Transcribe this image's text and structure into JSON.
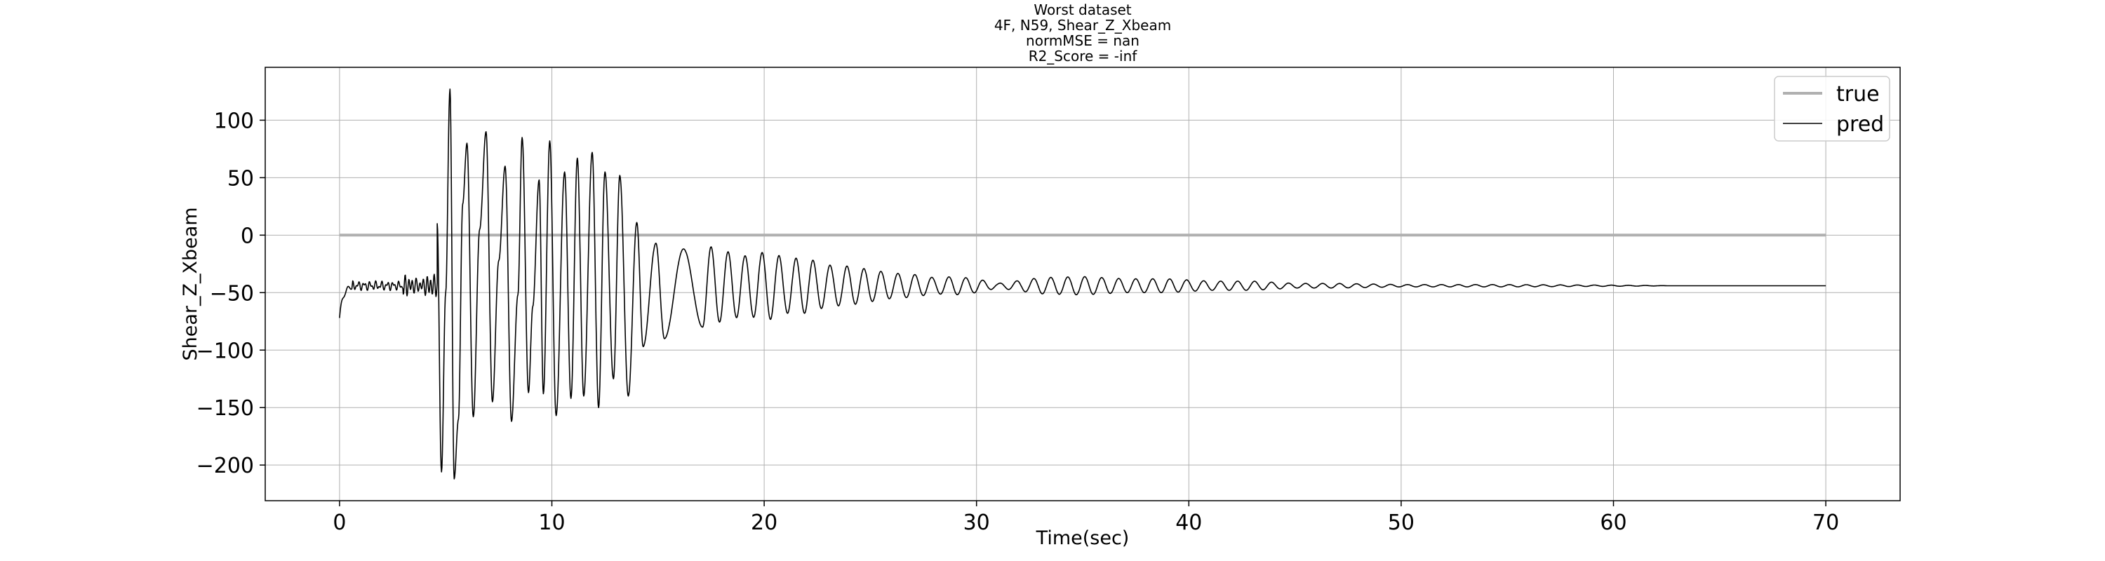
{
  "chart_data": {
    "type": "line",
    "title_lines": [
      "Worst dataset",
      "4F, N59, Shear_Z_Xbeam",
      "normMSE = nan",
      "R2_Score = -inf"
    ],
    "xlabel": "Time(sec)",
    "ylabel": "Shear_Z_Xbeam",
    "xlim": [
      -3.5,
      73.5
    ],
    "ylim": [
      -231,
      146
    ],
    "x_ticks": [
      0,
      10,
      20,
      30,
      40,
      50,
      60,
      70
    ],
    "y_ticks": [
      100,
      50,
      0,
      -50,
      -100,
      -150,
      -200
    ],
    "x_tick_labels": [
      "0",
      "10",
      "20",
      "30",
      "40",
      "50",
      "60",
      "70"
    ],
    "y_tick_labels": [
      "100",
      "50",
      "0",
      "−50",
      "−100",
      "−150",
      "−200"
    ],
    "grid": true,
    "legend_position": "top-right",
    "series": [
      {
        "name": "true",
        "color": "#b0b0b0",
        "style": "thick",
        "x": [
          0,
          70
        ],
        "y": [
          0,
          0
        ]
      },
      {
        "name": "pred",
        "color": "#000000",
        "style": "thin",
        "baseline": -44,
        "start_value": -72,
        "x_range": [
          0,
          70
        ],
        "sample_step": 0.02,
        "oscillation_period_sec": 0.8,
        "extrema": [
          [
            4.6,
            10
          ],
          [
            4.8,
            -206
          ],
          [
            5.0,
            -50
          ],
          [
            5.2,
            127
          ],
          [
            5.4,
            -212
          ],
          [
            5.6,
            -160
          ],
          [
            5.8,
            27
          ],
          [
            6.0,
            80
          ],
          [
            6.3,
            -158
          ],
          [
            6.6,
            5
          ],
          [
            6.9,
            90
          ],
          [
            7.2,
            -145
          ],
          [
            7.5,
            -22
          ],
          [
            7.8,
            60
          ],
          [
            8.1,
            -162
          ],
          [
            8.4,
            -52
          ],
          [
            8.6,
            85
          ],
          [
            8.9,
            -137
          ],
          [
            9.1,
            -62
          ],
          [
            9.4,
            48
          ],
          [
            9.6,
            -138
          ],
          [
            9.9,
            82
          ],
          [
            10.2,
            -157
          ],
          [
            10.6,
            55
          ],
          [
            10.9,
            -142
          ],
          [
            11.2,
            67
          ],
          [
            11.5,
            -140
          ],
          [
            11.9,
            72
          ],
          [
            12.2,
            -150
          ],
          [
            12.5,
            55
          ],
          [
            12.9,
            -125
          ],
          [
            13.2,
            52
          ],
          [
            13.6,
            -140
          ],
          [
            14.0,
            11
          ],
          [
            14.3,
            -97
          ],
          [
            14.9,
            -7
          ],
          [
            15.3,
            -90
          ],
          [
            16.2,
            -12
          ],
          [
            17.1,
            -80
          ],
          [
            18.2,
            -14
          ],
          [
            19.1,
            -70
          ],
          [
            20.2,
            -14
          ],
          [
            21.0,
            -68
          ],
          [
            22.0,
            -20
          ],
          [
            23.0,
            -62
          ],
          [
            24.0,
            -27
          ],
          [
            25.0,
            -58
          ],
          [
            26.0,
            -33
          ],
          [
            27.0,
            -54
          ],
          [
            28.0,
            -37
          ],
          [
            29.0,
            -52
          ],
          [
            30.0,
            -38
          ],
          [
            31.0,
            -42
          ],
          [
            33.0,
            -37
          ],
          [
            35.0,
            -52
          ],
          [
            37.0,
            -38
          ],
          [
            39.0,
            -50
          ],
          [
            41.0,
            -40
          ],
          [
            43.0,
            -48
          ],
          [
            45.0,
            -42
          ],
          [
            47.0,
            -46
          ],
          [
            50.0,
            -43
          ],
          [
            55.0,
            -45
          ],
          [
            60.0,
            -43.5
          ],
          [
            63.0,
            -44
          ]
        ]
      }
    ]
  }
}
